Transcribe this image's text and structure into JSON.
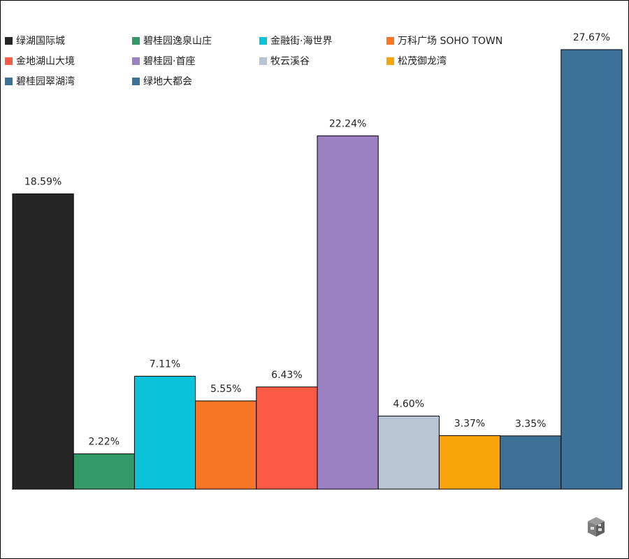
{
  "chart_data": {
    "type": "bar",
    "categories": [
      "绿湖国际城",
      "碧桂园逸泉山庄",
      "金融街·海世界",
      "万科广场 SOHO TOWN",
      "金地湖山大境",
      "碧桂园·首座",
      "牧云溪谷",
      "松茂御龙湾",
      "碧桂园翠湖湾",
      "绿地大都会"
    ],
    "values": [
      18.59,
      2.22,
      7.11,
      5.55,
      6.43,
      22.24,
      4.6,
      3.37,
      3.35,
      27.67
    ],
    "value_labels": [
      "18.59%",
      "2.22%",
      "7.11%",
      "5.55%",
      "6.43%",
      "22.24%",
      "4.60%",
      "3.37%",
      "3.35%",
      "27.67%"
    ],
    "colors": [
      "#262626",
      "#339966",
      "#0ac2d9",
      "#f77626",
      "#fb5a44",
      "#9b80c2",
      "#b8c3d3",
      "#faa40c",
      "#3c7096",
      "#3c7299"
    ],
    "ylim": [
      0,
      27.67
    ],
    "grid": false,
    "legend_position": "top"
  }
}
